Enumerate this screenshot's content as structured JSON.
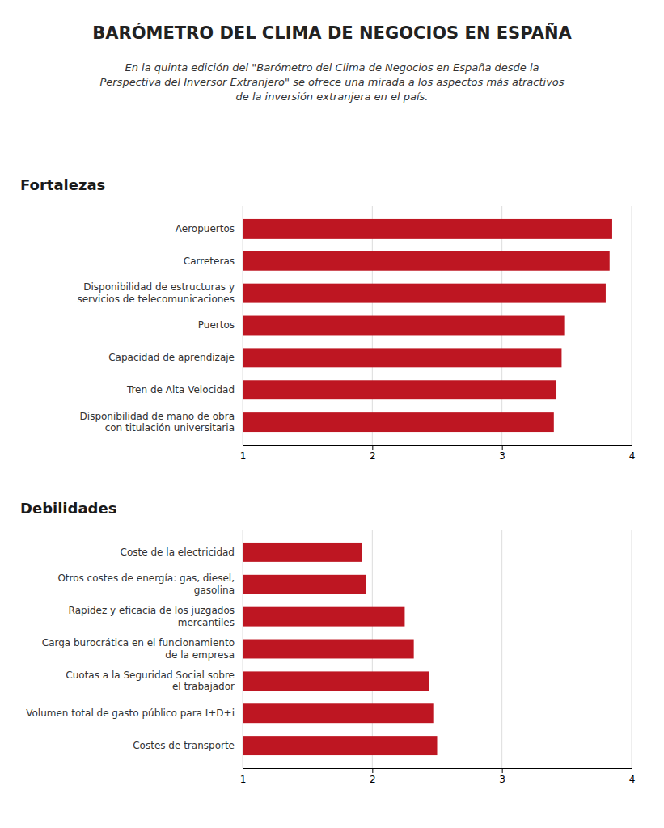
{
  "title": "BARÓMETRO DEL CLIMA DE NEGOCIOS EN ESPAÑA",
  "subtitle": "En la quinta edición del \"Barómetro del Clima de Negocios en España desde la\nPerspectiva del Inversor Extranjero\" se ofrece una mirada a los aspectos más atractivos\nde la inversión extranjera en el país.",
  "chart_data": [
    {
      "type": "bar",
      "title": "Fortalezas",
      "orientation": "horizontal",
      "categories": [
        "Aeropuertos",
        "Carreteras",
        "Disponibilidad de estructuras y\nservicios de telecomunicaciones",
        "Puertos",
        "Capacidad de aprendizaje",
        "Tren de Alta Velocidad",
        "Disponibilidad de mano de obra\ncon titulación universitaria"
      ],
      "values": [
        3.85,
        3.83,
        3.8,
        3.48,
        3.46,
        3.42,
        3.4
      ],
      "color": "#be1622",
      "xlim": [
        1,
        4
      ],
      "xticks": [
        1,
        2,
        3,
        4
      ],
      "grid": true
    },
    {
      "type": "bar",
      "title": "Debilidades",
      "orientation": "horizontal",
      "categories": [
        "Coste de la electricidad",
        "Otros costes de energía: gas, diesel,\ngasolina",
        "Rapidez y eficacia de los juzgados\nmercantiles",
        "Carga burocrática en el funcionamiento\nde la empresa",
        "Cuotas a la Seguridad Social sobre\nel trabajador",
        "Volumen total de gasto público para I+D+i",
        "Costes de transporte"
      ],
      "values": [
        1.92,
        1.95,
        2.25,
        2.32,
        2.44,
        2.47,
        2.5
      ],
      "color": "#be1622",
      "xlim": [
        1,
        4
      ],
      "xticks": [
        1,
        2,
        3,
        4
      ],
      "grid": true
    }
  ]
}
